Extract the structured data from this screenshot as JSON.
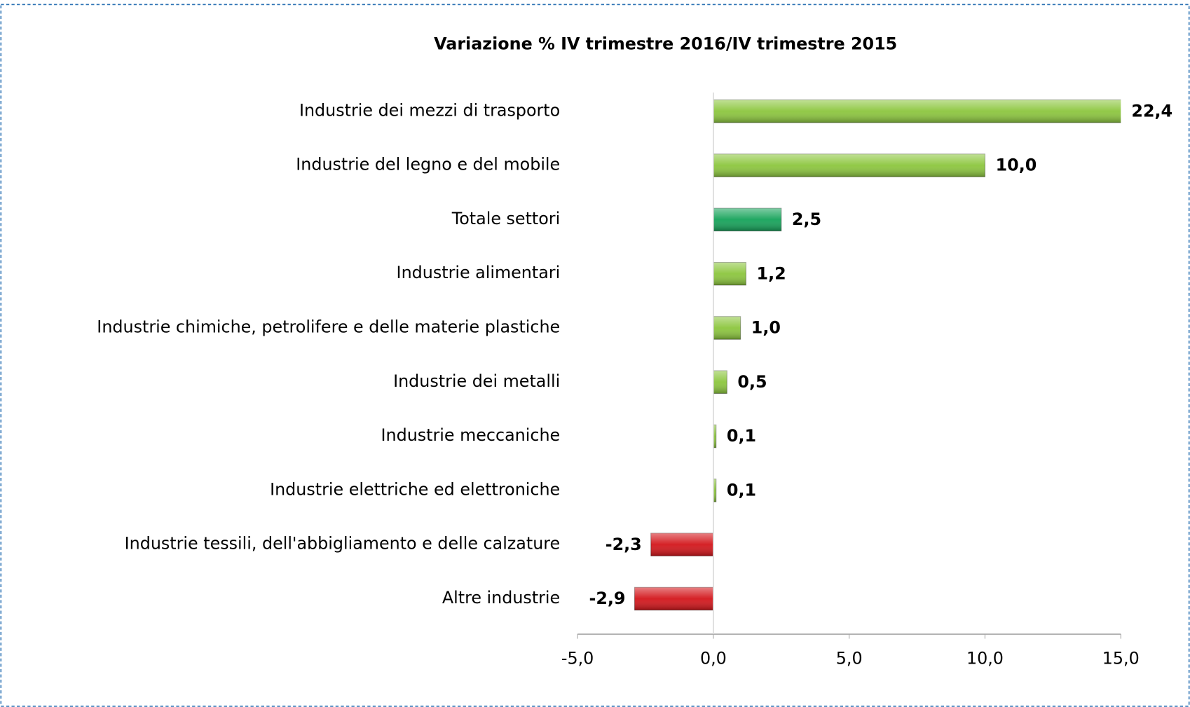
{
  "chart_data": {
    "type": "bar",
    "orientation": "horizontal",
    "title": "Variazione % IV trimestre 2016/IV trimestre 2015",
    "categories": [
      "Industrie dei mezzi di trasporto",
      "Industrie del legno e del mobile",
      "Totale settori",
      "Industrie alimentari",
      "Industrie chimiche, petrolifere e delle materie plastiche",
      "Industrie dei metalli",
      "Industrie meccaniche",
      "Industrie elettriche ed elettroniche",
      "Industrie tessili, dell'abbigliamento e delle calzature",
      "Altre industrie"
    ],
    "values": [
      22.4,
      10.0,
      2.5,
      1.2,
      1.0,
      0.5,
      0.1,
      0.1,
      -2.3,
      -2.9
    ],
    "value_labels": [
      "22,4",
      "10,0",
      "2,5",
      "1,2",
      "1,0",
      "0,5",
      "0,1",
      "0,1",
      "-2,3",
      "-2,9"
    ],
    "colors": [
      "#8cc63e",
      "#8cc63e",
      "#16a35a",
      "#8cc63e",
      "#8cc63e",
      "#8cc63e",
      "#8cc63e",
      "#8cc63e",
      "#d3161b",
      "#d3161b"
    ],
    "xlim": [
      -5,
      15
    ],
    "xticks": [
      {
        "value": -5,
        "label": "-5,0"
      },
      {
        "value": 0,
        "label": "0,0"
      },
      {
        "value": 5,
        "label": "5,0"
      },
      {
        "value": 10,
        "label": "10,0"
      },
      {
        "value": 15,
        "label": "15,0"
      }
    ],
    "grid": false
  }
}
